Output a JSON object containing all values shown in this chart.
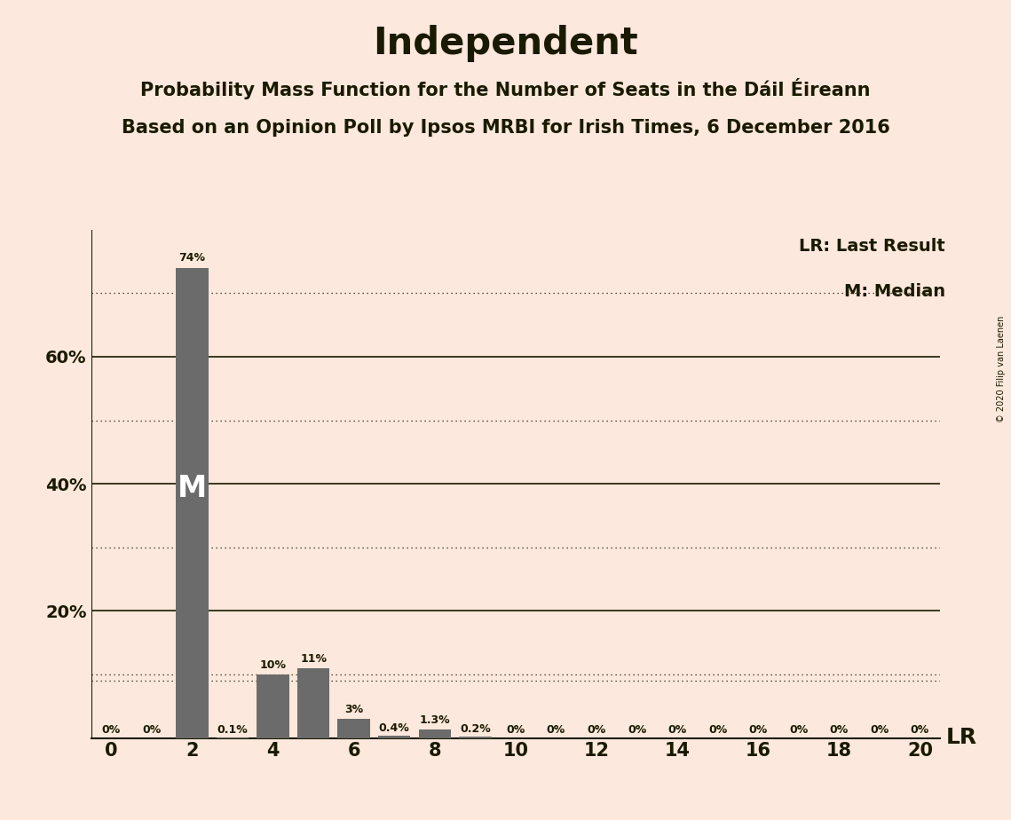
{
  "title": "Independent",
  "subtitle1": "Probability Mass Function for the Number of Seats in the Dáil Éireann",
  "subtitle2": "Based on an Opinion Poll by Ipsos MRBI for Irish Times, 6 December 2016",
  "copyright": "© 2020 Filip van Laenen",
  "background_color": "#fce8dc",
  "bar_color": "#6b6b6b",
  "text_color": "#1a1a00",
  "seats": [
    0,
    1,
    2,
    3,
    4,
    5,
    6,
    7,
    8,
    9,
    10,
    11,
    12,
    13,
    14,
    15,
    16,
    17,
    18,
    19,
    20
  ],
  "probabilities": [
    0.0,
    0.0,
    74.0,
    0.1,
    10.0,
    11.0,
    3.0,
    0.4,
    1.3,
    0.2,
    0.0,
    0.0,
    0.0,
    0.0,
    0.0,
    0.0,
    0.0,
    0.0,
    0.0,
    0.0,
    0.0
  ],
  "labels": [
    "0%",
    "0%",
    "74%",
    "0.1%",
    "10%",
    "11%",
    "3%",
    "0.4%",
    "1.3%",
    "0.2%",
    "0%",
    "0%",
    "0%",
    "0%",
    "0%",
    "0%",
    "0%",
    "0%",
    "0%",
    "0%",
    "0%"
  ],
  "median_seat": 2,
  "lr_line_y": 9.0,
  "ylim": [
    0,
    80
  ],
  "yticks": [
    20,
    40,
    60
  ],
  "ytick_labels": [
    "20%",
    "40%",
    "60%"
  ],
  "dotted_yticks": [
    10,
    30,
    50,
    70
  ],
  "solid_yticks": [
    20,
    40,
    60
  ],
  "xlim": [
    -0.5,
    20.5
  ],
  "xticks": [
    0,
    2,
    4,
    6,
    8,
    10,
    12,
    14,
    16,
    18,
    20
  ],
  "legend_lr_label": "LR: Last Result",
  "legend_m_label": "M: Median",
  "label_fontsize": 9,
  "tick_fontsize": 14,
  "title_fontsize": 30,
  "subtitle_fontsize": 15,
  "legend_fontsize": 14
}
